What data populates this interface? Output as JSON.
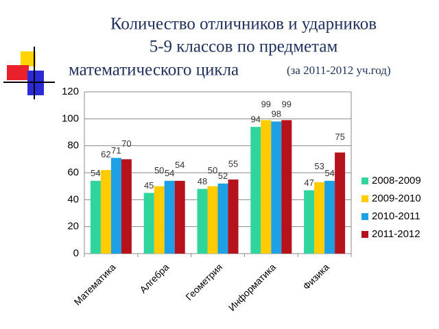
{
  "chart_data": {
    "type": "bar",
    "title_lines": [
      "Количество отличников и ударников",
      "5-9 классов по предметам",
      "математического цикла"
    ],
    "title_note": "(за 2011-2012 уч.год)",
    "categories": [
      "Математика",
      "Алгебра",
      "Геометрия",
      "Информатика",
      "Физика"
    ],
    "series": [
      {
        "name": "2008-2009",
        "color": "#2fd59c",
        "values": [
          54,
          45,
          48,
          94,
          47
        ]
      },
      {
        "name": "2009-2010",
        "color": "#ffcc00",
        "values": [
          62,
          50,
          50,
          99,
          53
        ]
      },
      {
        "name": "2010-2011",
        "color": "#1ea0e6",
        "values": [
          71,
          54,
          52,
          98,
          54
        ]
      },
      {
        "name": "2011-2012",
        "color": "#b5121b",
        "values": [
          70,
          54,
          55,
          99,
          75
        ]
      }
    ],
    "ylim": [
      0,
      120
    ],
    "yticks": [
      0,
      20,
      40,
      60,
      80,
      100,
      120
    ],
    "grid": true,
    "legend": "right"
  }
}
